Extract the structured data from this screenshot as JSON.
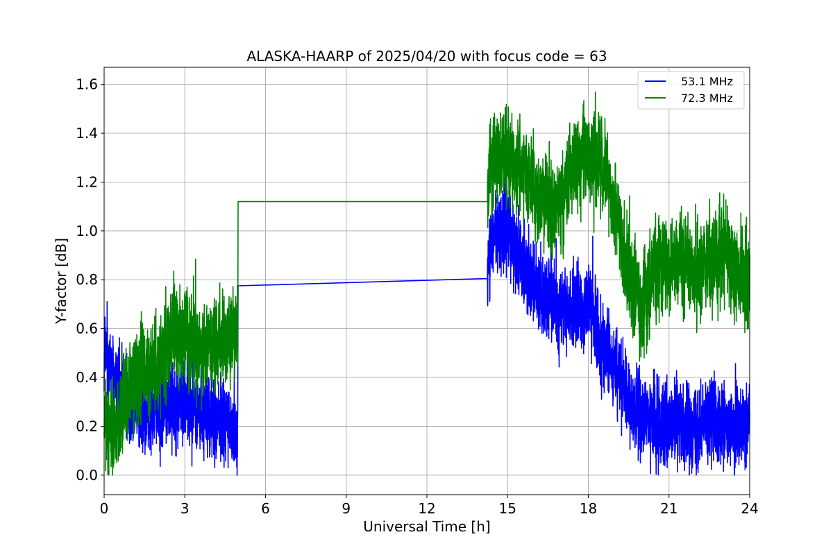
{
  "chart_data": {
    "type": "line",
    "title": "ALASKA-HAARP of 2025/04/20 with focus code = 63",
    "xlabel": "Universal Time [h]",
    "ylabel": "Y-factor [dB]",
    "xlim": [
      0,
      24
    ],
    "ylim": [
      -0.08,
      1.67
    ],
    "xticks": [
      0,
      3,
      6,
      9,
      12,
      15,
      18,
      21,
      24
    ],
    "yticks": [
      0.0,
      0.2,
      0.4,
      0.6,
      0.8,
      1.0,
      1.2,
      1.4,
      1.6
    ],
    "ytick_labels": [
      "0.0",
      "0.2",
      "0.4",
      "0.6",
      "0.8",
      "1.0",
      "1.2",
      "1.4",
      "1.6"
    ],
    "grid": true,
    "legend_position": "top-right",
    "series": [
      {
        "name": "53.1 MHz",
        "color": "#0000ff",
        "noise": 0.085,
        "x": [
          0,
          0.25,
          0.5,
          1.0,
          1.5,
          2.0,
          2.5,
          3.0,
          3.5,
          4.0,
          4.5,
          4.97,
          4.98,
          14.25,
          14.3,
          14.6,
          15.0,
          15.3,
          15.6,
          16.0,
          16.5,
          17.0,
          17.5,
          18.0,
          18.3,
          18.6,
          19.0,
          19.5,
          20.0,
          20.5,
          21.0,
          21.5,
          22.0,
          22.5,
          23.0,
          23.5,
          24.0
        ],
        "y": [
          0.5,
          0.47,
          0.36,
          0.3,
          0.26,
          0.27,
          0.3,
          0.3,
          0.27,
          0.24,
          0.21,
          0.18,
          0.775,
          0.805,
          0.9,
          1.0,
          1.02,
          0.93,
          0.86,
          0.8,
          0.72,
          0.68,
          0.68,
          0.69,
          0.6,
          0.52,
          0.44,
          0.3,
          0.23,
          0.22,
          0.22,
          0.21,
          0.2,
          0.24,
          0.18,
          0.18,
          0.24
        ]
      },
      {
        "name": "72.3 MHz",
        "color": "#008000",
        "noise": 0.095,
        "x": [
          0,
          0.5,
          1.0,
          1.5,
          2.0,
          2.4,
          2.6,
          3.0,
          3.5,
          4.0,
          4.5,
          4.97,
          4.98,
          14.25,
          14.3,
          14.6,
          15.0,
          15.5,
          16.0,
          16.5,
          17.0,
          17.5,
          18.0,
          18.5,
          19.0,
          19.3,
          19.6,
          20.0,
          20.5,
          21.0,
          21.5,
          22.0,
          22.5,
          23.0,
          23.5,
          24.0
        ],
        "y": [
          0.2,
          0.2,
          0.36,
          0.43,
          0.43,
          0.54,
          0.59,
          0.56,
          0.52,
          0.54,
          0.56,
          0.62,
          1.12,
          1.12,
          1.22,
          1.3,
          1.3,
          1.25,
          1.18,
          1.12,
          1.1,
          1.28,
          1.3,
          1.28,
          1.12,
          0.9,
          0.78,
          0.68,
          0.85,
          0.88,
          0.88,
          0.82,
          0.88,
          0.92,
          0.82,
          0.8
        ]
      }
    ]
  }
}
